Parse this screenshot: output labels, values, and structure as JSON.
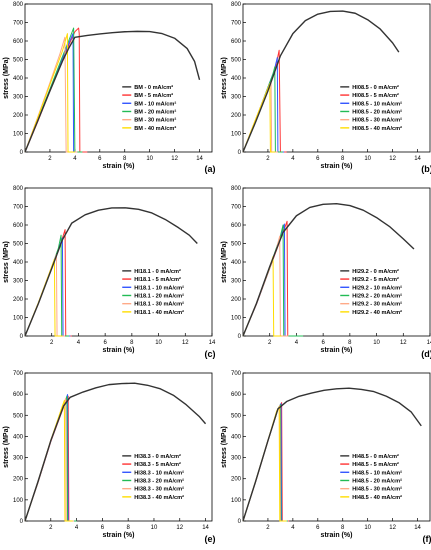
{
  "chart_data": [
    {
      "type": "line",
      "panel_label": "(a)",
      "xlabel": "strain (%)",
      "ylabel": "stress (MPa)",
      "xlim": [
        0,
        15
      ],
      "ylim": [
        0,
        800
      ],
      "xticks": [
        "2",
        "4",
        "6",
        "8",
        "10",
        "12",
        "14"
      ],
      "yticks": [
        "0",
        "100",
        "200",
        "300",
        "400",
        "500",
        "600",
        "700",
        "800"
      ],
      "legend_position": "center-right",
      "grid": false,
      "series": [
        {
          "name": "BM - 0 mA/cm²",
          "color": "#333333",
          "x": [
            0,
            1,
            2,
            3,
            3.5,
            4.0,
            5,
            6,
            7,
            8,
            9,
            10,
            11,
            12,
            13,
            13.6,
            14.0
          ],
          "y": [
            0,
            165,
            330,
            490,
            560,
            620,
            630,
            638,
            645,
            650,
            652,
            651,
            640,
            615,
            560,
            490,
            390
          ]
        },
        {
          "name": "BM - 5 mA/cm²",
          "color": "#ff3333",
          "x": [
            0,
            1,
            2,
            3,
            3.6,
            4.0,
            4.3,
            4.35,
            4.4,
            5.0
          ],
          "y": [
            0,
            160,
            330,
            500,
            590,
            650,
            670,
            640,
            0,
            0
          ]
        },
        {
          "name": "BM - 10 mA/cm²",
          "color": "#3355ff",
          "x": [
            0,
            1,
            2,
            3,
            3.5,
            3.85,
            3.9,
            4.5
          ],
          "y": [
            0,
            165,
            335,
            505,
            585,
            640,
            0,
            0
          ]
        },
        {
          "name": "BM - 20 mA/cm²",
          "color": "#22bb55",
          "x": [
            0,
            1,
            2,
            3,
            3.5,
            3.9,
            4.0,
            4.6
          ],
          "y": [
            0,
            170,
            340,
            515,
            600,
            670,
            0,
            0
          ]
        },
        {
          "name": "BM - 30 mA/cm²",
          "color": "#ffaa88",
          "x": [
            0,
            1,
            2,
            2.8,
            3.2,
            3.3,
            4.2
          ],
          "y": [
            0,
            185,
            375,
            530,
            620,
            0,
            0
          ]
        },
        {
          "name": "BM - 40 mA/cm²",
          "color": "#ffdd00",
          "x": [
            0,
            1,
            2,
            3.0,
            3.4,
            3.45,
            4.0
          ],
          "y": [
            0,
            180,
            365,
            545,
            640,
            0,
            0
          ]
        }
      ]
    },
    {
      "type": "line",
      "panel_label": "(b)",
      "xlabel": "strain (%)",
      "ylabel": "stress (MPa)",
      "xlim": [
        0,
        15
      ],
      "ylim": [
        0,
        800
      ],
      "xticks": [
        "2",
        "4",
        "6",
        "8",
        "10",
        "12",
        "14"
      ],
      "yticks": [
        "0",
        "100",
        "200",
        "300",
        "400",
        "500",
        "600",
        "700",
        "800"
      ],
      "legend_position": "center-right",
      "grid": false,
      "series": [
        {
          "name": "HI08.5 - 0 mA/cm²",
          "color": "#333333",
          "x": [
            0,
            1,
            2,
            3,
            4,
            5,
            6,
            7,
            8,
            9,
            10,
            11,
            12,
            12.5
          ],
          "y": [
            0,
            160,
            330,
            520,
            640,
            710,
            745,
            760,
            762,
            750,
            715,
            665,
            590,
            540
          ]
        },
        {
          "name": "HI08.5 - 5 mA/cm²",
          "color": "#ff3333",
          "x": [
            0,
            1,
            2,
            2.6,
            2.9,
            3.0,
            3.5
          ],
          "y": [
            0,
            165,
            345,
            455,
            550,
            0,
            0
          ]
        },
        {
          "name": "HI08.5 - 10 mA/cm²",
          "color": "#3355ff",
          "x": [
            0,
            1,
            2,
            2.5,
            2.75,
            2.8,
            3.3
          ],
          "y": [
            0,
            170,
            350,
            440,
            510,
            0,
            0
          ]
        },
        {
          "name": "HI08.5 - 20 mA/cm²",
          "color": "#22bb55",
          "x": [
            0,
            1,
            2,
            2.4,
            2.55,
            2.6,
            3.2
          ],
          "y": [
            0,
            170,
            350,
            420,
            460,
            0,
            0
          ]
        },
        {
          "name": "HI08.5 - 30 mA/cm²",
          "color": "#ffaa88",
          "x": [
            0,
            1,
            2,
            2.25,
            2.3,
            2.8
          ],
          "y": [
            0,
            175,
            345,
            380,
            0,
            0
          ]
        },
        {
          "name": "HI08.5 - 40 mA/cm²",
          "color": "#ffdd00",
          "x": [
            0,
            1,
            1.8,
            2.15,
            2.2,
            2.6
          ],
          "y": [
            0,
            175,
            310,
            370,
            0,
            0
          ]
        }
      ]
    },
    {
      "type": "line",
      "panel_label": "(c)",
      "xlabel": "strain (%)",
      "ylabel": "stress (MPa)",
      "xlim": [
        0,
        14
      ],
      "ylim": [
        0,
        800
      ],
      "xticks": [
        "2",
        "4",
        "6",
        "8",
        "10",
        "12",
        "14"
      ],
      "yticks": [
        "0",
        "100",
        "200",
        "300",
        "400",
        "500",
        "600",
        "700",
        "800"
      ],
      "legend_position": "center-right",
      "grid": false,
      "series": [
        {
          "name": "HI18.1 - 0 mA/cm²",
          "color": "#333333",
          "x": [
            0,
            1,
            2,
            2.8,
            3.5,
            4.5,
            5.5,
            6.5,
            7.5,
            8.5,
            9.5,
            10.5,
            11.5,
            12.3,
            12.9
          ],
          "y": [
            0,
            175,
            365,
            520,
            610,
            655,
            680,
            692,
            693,
            685,
            665,
            630,
            585,
            545,
            500
          ]
        },
        {
          "name": "HI18.1 - 5 mA/cm²",
          "color": "#ff3333",
          "x": [
            0,
            1,
            2,
            2.7,
            3.0,
            3.05,
            3.5
          ],
          "y": [
            0,
            175,
            365,
            505,
            575,
            0,
            0
          ]
        },
        {
          "name": "HI18.1 - 10 mA/cm²",
          "color": "#3355ff",
          "x": [
            0,
            1,
            2,
            2.5,
            2.8,
            2.85,
            3.4
          ],
          "y": [
            0,
            178,
            370,
            470,
            530,
            0,
            0
          ]
        },
        {
          "name": "HI18.1 - 20 mA/cm²",
          "color": "#22bb55",
          "x": [
            0,
            1,
            2,
            2.5,
            2.7,
            2.75,
            3.3
          ],
          "y": [
            0,
            178,
            372,
            475,
            545,
            0,
            0
          ]
        },
        {
          "name": "HI18.1 - 30 mA/cm²",
          "color": "#ffaa88",
          "x": [
            0,
            1,
            2,
            2.35,
            2.4,
            3.0
          ],
          "y": [
            0,
            180,
            375,
            440,
            0,
            0
          ]
        },
        {
          "name": "HI18.1 - 40 mA/cm²",
          "color": "#ffdd00",
          "x": [
            0,
            1,
            1.9,
            2.2,
            2.25,
            2.8
          ],
          "y": [
            0,
            180,
            355,
            415,
            0,
            0
          ]
        }
      ]
    },
    {
      "type": "line",
      "panel_label": "(d)",
      "xlabel": "strain (%)",
      "ylabel": "stress (MPa)",
      "xlim": [
        0,
        14
      ],
      "ylim": [
        0,
        800
      ],
      "xticks": [
        "2",
        "4",
        "6",
        "8",
        "10",
        "12",
        "14"
      ],
      "yticks": [
        "0",
        "100",
        "200",
        "300",
        "400",
        "500",
        "600",
        "700",
        "800"
      ],
      "legend_position": "center-right",
      "grid": false,
      "series": [
        {
          "name": "HI29.2 - 0 mA/cm²",
          "color": "#333333",
          "x": [
            0,
            1,
            2,
            3,
            4,
            5,
            6,
            7,
            8,
            9,
            10,
            11,
            12,
            12.8
          ],
          "y": [
            0,
            175,
            375,
            560,
            650,
            695,
            712,
            715,
            705,
            680,
            640,
            590,
            525,
            470
          ]
        },
        {
          "name": "HI29.2 - 5 mA/cm²",
          "color": "#ff3333",
          "x": [
            0,
            1,
            2,
            3,
            3.3,
            3.35,
            3.9
          ],
          "y": [
            0,
            170,
            365,
            560,
            620,
            0,
            0
          ]
        },
        {
          "name": "HI29.2 - 10 mA/cm²",
          "color": "#3355ff",
          "x": [
            0,
            1,
            2,
            2.9,
            3.1,
            3.15,
            3.8
          ],
          "y": [
            0,
            172,
            368,
            555,
            605,
            0,
            0
          ]
        },
        {
          "name": "HI29.2 - 20 mA/cm²",
          "color": "#22bb55",
          "x": [
            0,
            1,
            2,
            2.8,
            3.0,
            3.05,
            4.5
          ],
          "y": [
            0,
            174,
            370,
            540,
            600,
            0,
            0
          ]
        },
        {
          "name": "HI29.2 - 30 mA/cm²",
          "color": "#ffaa88",
          "x": [
            0,
            1,
            2,
            2.5,
            2.75,
            2.8,
            3.4
          ],
          "y": [
            0,
            175,
            372,
            470,
            540,
            0,
            0
          ]
        },
        {
          "name": "HI29.2 - 40 mA/cm²",
          "color": "#ffdd00",
          "x": [
            0,
            1,
            2,
            2.25,
            2.3,
            2.9
          ],
          "y": [
            0,
            175,
            370,
            430,
            0,
            0
          ]
        }
      ]
    },
    {
      "type": "line",
      "panel_label": "(e)",
      "xlabel": "strain (%)",
      "ylabel": "stress (MPa)",
      "xlim": [
        0,
        14.5
      ],
      "ylim": [
        0,
        700
      ],
      "xticks": [
        "2",
        "4",
        "6",
        "8",
        "10",
        "12",
        "14"
      ],
      "yticks": [
        "0",
        "100",
        "200",
        "300",
        "400",
        "500",
        "600",
        "700"
      ],
      "legend_position": "center-right",
      "grid": false,
      "series": [
        {
          "name": "HI38.3 - 0 mA/cm²",
          "color": "#333333",
          "x": [
            0,
            1,
            2,
            3,
            3.5,
            4.5,
            5.5,
            6.5,
            7.5,
            8.5,
            9.5,
            10.5,
            11.5,
            12.5,
            13.5,
            14.0
          ],
          "y": [
            0,
            185,
            380,
            545,
            585,
            610,
            630,
            645,
            650,
            652,
            642,
            625,
            595,
            550,
            495,
            460
          ]
        },
        {
          "name": "HI38.3 - 5 mA/cm²",
          "color": "#ff3333",
          "x": [
            0,
            1,
            2,
            3,
            3.35,
            3.4,
            4.0
          ],
          "y": [
            0,
            180,
            375,
            540,
            590,
            0,
            0
          ]
        },
        {
          "name": "HI38.3 - 10 mA/cm²",
          "color": "#3355ff",
          "x": [
            0,
            1,
            2,
            3,
            3.3,
            3.35,
            4.0
          ],
          "y": [
            0,
            182,
            378,
            545,
            598,
            0,
            0
          ]
        },
        {
          "name": "HI38.3 - 20 mA/cm²",
          "color": "#22bb55",
          "x": [
            0,
            1,
            2,
            3,
            3.25,
            3.3,
            4.0
          ],
          "y": [
            0,
            183,
            380,
            548,
            590,
            0,
            0
          ]
        },
        {
          "name": "HI38.3 - 30 mA/cm²",
          "color": "#ffaa88",
          "x": [
            0,
            1,
            2,
            3,
            3.15,
            3.2,
            3.8
          ],
          "y": [
            0,
            184,
            382,
            550,
            580,
            0,
            0
          ]
        },
        {
          "name": "HI38.3 - 40 mA/cm²",
          "color": "#ffdd00",
          "x": [
            0,
            1,
            2,
            2.9,
            3.05,
            3.1,
            3.7
          ],
          "y": [
            0,
            185,
            382,
            545,
            570,
            0,
            0
          ]
        }
      ]
    },
    {
      "type": "line",
      "panel_label": "(f)",
      "xlabel": "strain (%)",
      "ylabel": "stress (MPa)",
      "xlim": [
        0,
        15
      ],
      "ylim": [
        0,
        700
      ],
      "xticks": [
        "2",
        "4",
        "6",
        "8",
        "10",
        "12",
        "14"
      ],
      "yticks": [
        "0",
        "100",
        "200",
        "300",
        "400",
        "500",
        "600",
        "700"
      ],
      "legend_position": "center-right",
      "grid": false,
      "series": [
        {
          "name": "HI48.5 - 0 mA/cm²",
          "color": "#333333",
          "x": [
            0,
            1,
            2,
            2.8,
            3.5,
            4.5,
            5.5,
            6.5,
            7.5,
            8.5,
            9.5,
            10.5,
            11.5,
            12.5,
            13.5,
            14.3
          ],
          "y": [
            0,
            185,
            380,
            530,
            565,
            590,
            605,
            618,
            625,
            628,
            622,
            612,
            590,
            560,
            515,
            450
          ]
        },
        {
          "name": "HI48.5 - 5 mA/cm²",
          "color": "#ff3333",
          "x": [
            0,
            1,
            2,
            2.8,
            3.1,
            3.15,
            3.7
          ],
          "y": [
            0,
            183,
            378,
            528,
            560,
            0,
            0
          ]
        },
        {
          "name": "HI48.5 - 10 mA/cm²",
          "color": "#3355ff",
          "x": [
            0,
            1,
            2,
            2.8,
            3.05,
            3.1,
            3.6
          ],
          "y": [
            0,
            184,
            379,
            530,
            555,
            0,
            0
          ]
        },
        {
          "name": "HI48.5 - 20 mA/cm²",
          "color": "#22bb55",
          "x": [
            0,
            1,
            2,
            2.8,
            3.0,
            3.05,
            3.6
          ],
          "y": [
            0,
            185,
            380,
            530,
            550,
            0,
            0
          ]
        },
        {
          "name": "HI48.5 - 30 mA/cm²",
          "color": "#ffaa88",
          "x": [
            0,
            1,
            2,
            2.75,
            2.95,
            3.0,
            3.5
          ],
          "y": [
            0,
            185,
            380,
            525,
            545,
            0,
            0
          ]
        },
        {
          "name": "HI48.5 - 40 mA/cm²",
          "color": "#ffdd00",
          "x": [
            0,
            1,
            2,
            2.7,
            2.9,
            2.95,
            3.5
          ],
          "y": [
            0,
            186,
            381,
            520,
            540,
            0,
            0
          ]
        }
      ]
    }
  ]
}
